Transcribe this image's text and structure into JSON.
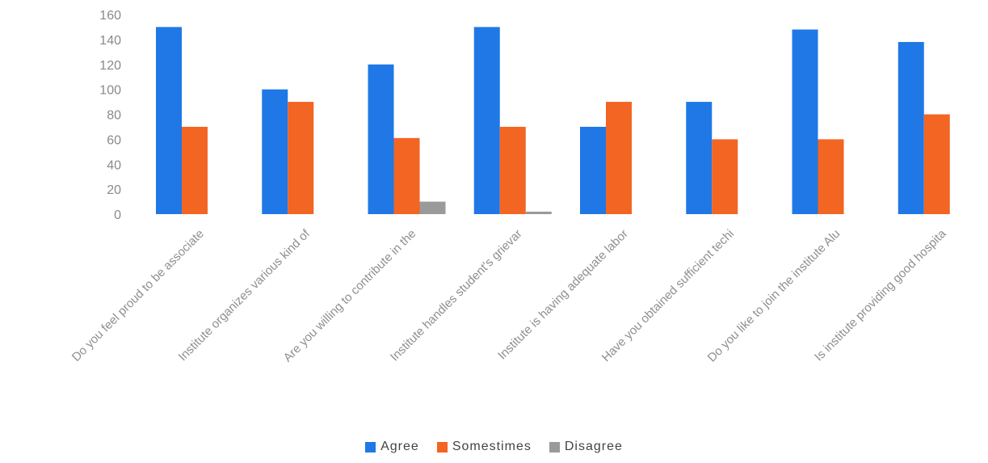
{
  "chart_data": {
    "type": "bar",
    "categories": [
      "Do you feel proud to be associate",
      "Institute organizes various kind of",
      "Are you willing to contribute in the",
      "Institute handles student's grievar",
      "Institute is having adequate labor",
      "Have you obtained sufficient techi",
      "Do you like to join the institute Alu",
      "Is institute providing good hospita"
    ],
    "series": [
      {
        "name": "Agree",
        "color": "#1f78e6",
        "values": [
          150,
          100,
          120,
          150,
          70,
          90,
          148,
          138
        ]
      },
      {
        "name": "Somestimes",
        "color": "#f26522",
        "values": [
          70,
          90,
          61,
          70,
          90,
          60,
          60,
          80
        ]
      },
      {
        "name": "Disagree",
        "color": "#9a9a9a",
        "values": [
          0,
          0,
          10,
          2,
          0,
          0,
          0,
          0
        ]
      }
    ],
    "ylim": [
      0,
      160
    ],
    "yticks": [
      0,
      20,
      40,
      60,
      80,
      100,
      120,
      140,
      160
    ],
    "grid": false,
    "legend_position": "bottom"
  }
}
